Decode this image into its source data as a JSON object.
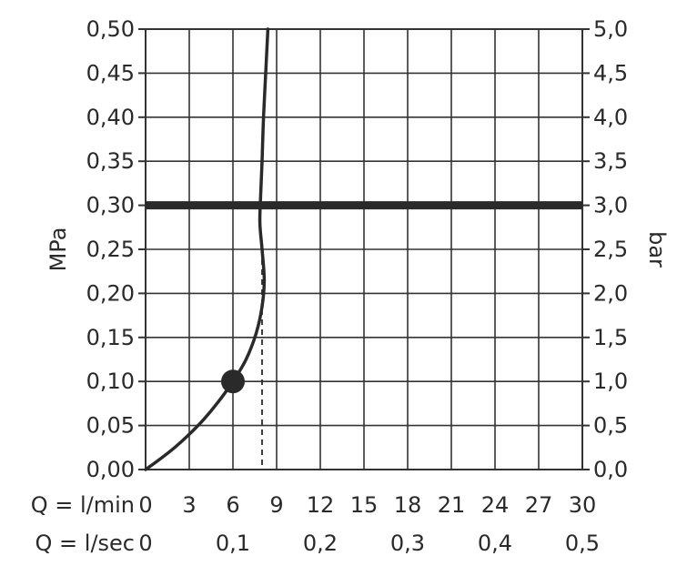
{
  "chart_data": {
    "type": "line",
    "title": "",
    "y_left": {
      "label": "MPa",
      "range": [
        0,
        0.5
      ],
      "ticks": [
        "0,00",
        "0,05",
        "0,10",
        "0,15",
        "0,20",
        "0,25",
        "0,30",
        "0,35",
        "0,40",
        "0,45",
        "0,50"
      ]
    },
    "y_right": {
      "label": "bar",
      "range": [
        0,
        5.0
      ],
      "ticks": [
        "0,0",
        "0,5",
        "1,0",
        "1,5",
        "2,0",
        "2,5",
        "3,0",
        "3,5",
        "4,0",
        "4,5",
        "5,0"
      ]
    },
    "x_primary": {
      "label": "Q = l/min",
      "range": [
        0,
        30
      ],
      "ticks": [
        "0",
        "3",
        "6",
        "9",
        "12",
        "15",
        "18",
        "21",
        "24",
        "27",
        "30"
      ]
    },
    "x_secondary": {
      "label": "Q = l/sec",
      "ticks": [
        {
          "label": "0",
          "value": 0
        },
        {
          "label": "0,1",
          "value": 6
        },
        {
          "label": "0,2",
          "value": 12
        },
        {
          "label": "0,3",
          "value": 18
        },
        {
          "label": "0,4",
          "value": 24
        },
        {
          "label": "0,5",
          "value": 30
        }
      ]
    },
    "grid": true,
    "series": [
      {
        "points": [
          [
            0,
            0
          ],
          [
            1,
            0.012
          ],
          [
            2,
            0.025
          ],
          [
            3,
            0.04
          ],
          [
            4,
            0.057
          ],
          [
            5,
            0.077
          ],
          [
            6,
            0.1
          ],
          [
            6.9,
            0.125
          ],
          [
            7.6,
            0.155
          ],
          [
            8.0,
            0.185
          ],
          [
            8.15,
            0.215
          ],
          [
            8.0,
            0.25
          ],
          [
            7.85,
            0.28
          ],
          [
            7.9,
            0.31
          ],
          [
            8.0,
            0.35
          ],
          [
            8.1,
            0.4
          ],
          [
            8.25,
            0.45
          ],
          [
            8.4,
            0.5
          ]
        ]
      }
    ],
    "reference_line": {
      "y": 0.3
    },
    "marker_point": {
      "x": 6,
      "y": 0.1
    },
    "dashed_drop": {
      "x": 8.0,
      "y_from": 0,
      "y_to": 0.25
    }
  }
}
